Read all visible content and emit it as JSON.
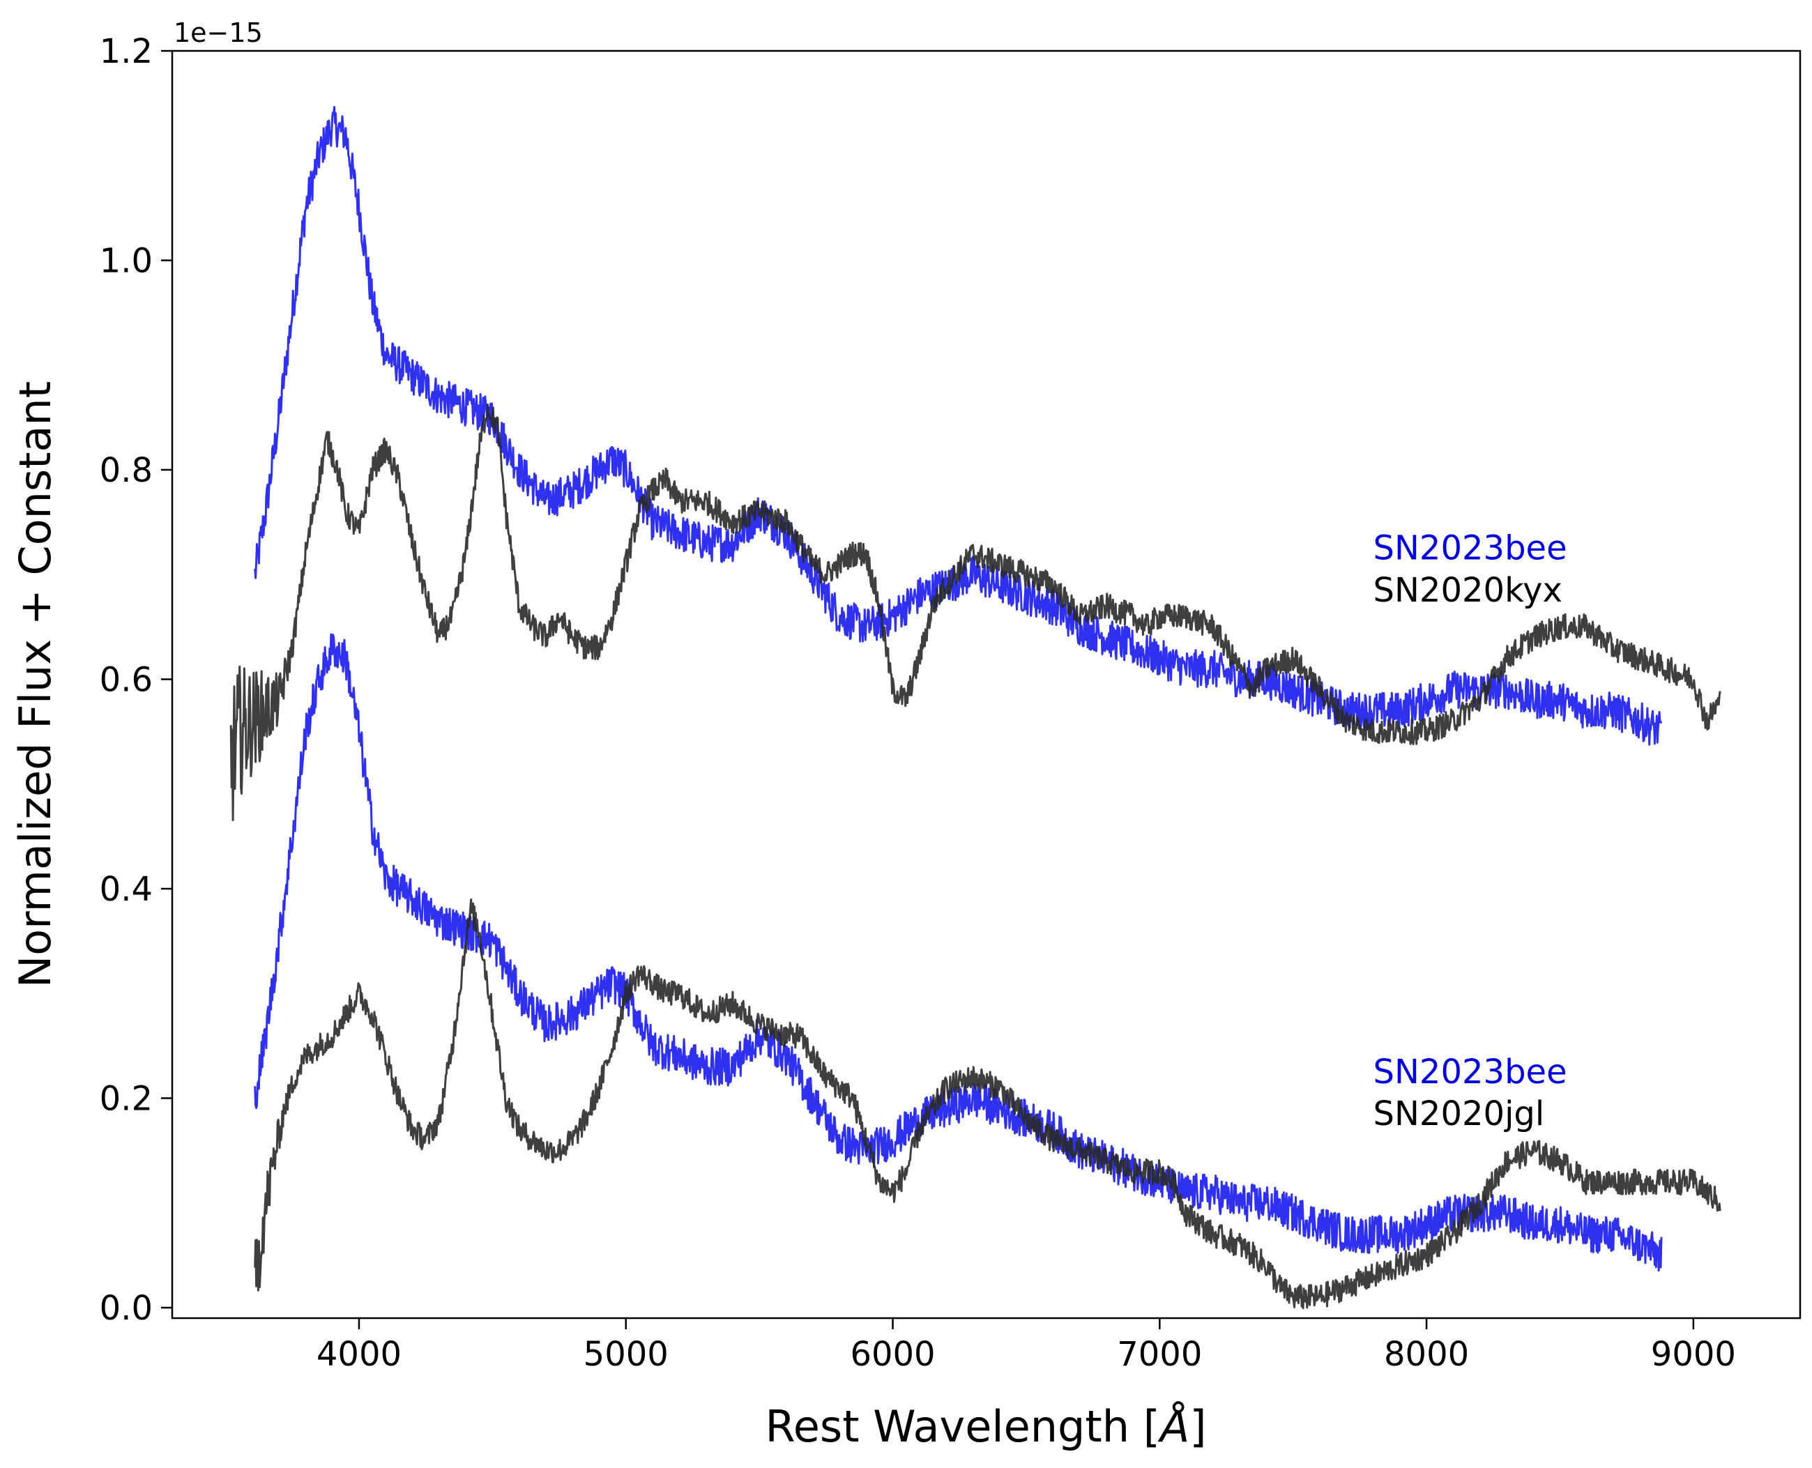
{
  "chart_data": {
    "type": "line",
    "xlabel": "Rest Wavelength [",
    "xlabel_unit": "Å",
    "xlabel_close": "]",
    "ylabel": "Normalized Flux + Constant",
    "y_offset_text": "1e−15",
    "xlim": [
      3300,
      9400
    ],
    "ylim": [
      -0.01,
      1.2
    ],
    "x_ticks": [
      4000,
      5000,
      6000,
      7000,
      8000,
      9000
    ],
    "x_tick_labels": [
      "4000",
      "5000",
      "6000",
      "7000",
      "8000",
      "9000"
    ],
    "y_ticks": [
      0.0,
      0.2,
      0.4,
      0.6,
      0.8,
      1.0,
      1.2
    ],
    "y_tick_labels": [
      "0.0",
      "0.2",
      "0.4",
      "0.6",
      "0.8",
      "1.0",
      "1.2"
    ],
    "grid": false,
    "colors": {
      "sn2023bee": "#1a1aee",
      "comparison": "#2a2a2a",
      "label_blue": "#0000dd",
      "label_black": "#000000"
    },
    "annotations": [
      {
        "text": "SN2023bee",
        "color": "#0000dd",
        "x": 7800,
        "y": 0.725
      },
      {
        "text": "SN2020kyx",
        "color": "#000000",
        "x": 7800,
        "y": 0.685
      },
      {
        "text": "SN2023bee",
        "color": "#0000dd",
        "x": 7800,
        "y": 0.225
      },
      {
        "text": "SN2020jgl",
        "color": "#000000",
        "x": 7800,
        "y": 0.185
      }
    ],
    "series": [
      {
        "key": "sn2023bee-top",
        "color": "#1a1aee",
        "noise": 0.018,
        "x": [
          3610,
          3650,
          3700,
          3750,
          3800,
          3850,
          3900,
          3950,
          4000,
          4050,
          4100,
          4150,
          4200,
          4300,
          4400,
          4500,
          4600,
          4700,
          4800,
          4900,
          4950,
          5000,
          5100,
          5200,
          5300,
          5400,
          5500,
          5550,
          5600,
          5700,
          5800,
          5900,
          6000,
          6100,
          6200,
          6300,
          6400,
          6500,
          6600,
          6700,
          6800,
          6900,
          7000,
          7100,
          7200,
          7300,
          7400,
          7500,
          7600,
          7700,
          7800,
          7900,
          8000,
          8100,
          8200,
          8300,
          8400,
          8500,
          8600,
          8700,
          8800,
          8880
        ],
        "y": [
          0.7,
          0.76,
          0.85,
          0.95,
          1.05,
          1.1,
          1.13,
          1.12,
          1.05,
          0.96,
          0.91,
          0.9,
          0.89,
          0.87,
          0.86,
          0.85,
          0.8,
          0.77,
          0.78,
          0.8,
          0.81,
          0.8,
          0.75,
          0.74,
          0.73,
          0.73,
          0.76,
          0.75,
          0.74,
          0.7,
          0.66,
          0.65,
          0.66,
          0.68,
          0.69,
          0.7,
          0.69,
          0.68,
          0.67,
          0.65,
          0.64,
          0.63,
          0.62,
          0.61,
          0.61,
          0.6,
          0.6,
          0.59,
          0.58,
          0.57,
          0.57,
          0.57,
          0.58,
          0.59,
          0.59,
          0.59,
          0.58,
          0.58,
          0.57,
          0.57,
          0.56,
          0.55
        ]
      },
      {
        "key": "sn2020kyx",
        "color": "#2a2a2a",
        "noise": 0.012,
        "x": [
          3520,
          3550,
          3600,
          3650,
          3700,
          3750,
          3800,
          3850,
          3880,
          3920,
          3950,
          4000,
          4050,
          4100,
          4150,
          4200,
          4250,
          4300,
          4350,
          4400,
          4450,
          4480,
          4520,
          4550,
          4600,
          4650,
          4700,
          4750,
          4800,
          4850,
          4900,
          4950,
          5000,
          5050,
          5100,
          5150,
          5200,
          5300,
          5400,
          5500,
          5600,
          5700,
          5750,
          5800,
          5850,
          5900,
          5950,
          6000,
          6050,
          6100,
          6150,
          6200,
          6300,
          6400,
          6500,
          6600,
          6700,
          6800,
          6900,
          6950,
          7000,
          7100,
          7200,
          7300,
          7350,
          7400,
          7500,
          7600,
          7700,
          7800,
          7900,
          8000,
          8100,
          8200,
          8300,
          8400,
          8500,
          8600,
          8700,
          8800,
          8900,
          9000,
          9050,
          9100
        ],
        "y": [
          0.52,
          0.55,
          0.56,
          0.57,
          0.58,
          0.63,
          0.72,
          0.79,
          0.83,
          0.8,
          0.76,
          0.74,
          0.8,
          0.82,
          0.79,
          0.73,
          0.68,
          0.64,
          0.66,
          0.72,
          0.82,
          0.86,
          0.84,
          0.76,
          0.67,
          0.65,
          0.64,
          0.66,
          0.64,
          0.63,
          0.63,
          0.66,
          0.71,
          0.76,
          0.78,
          0.79,
          0.77,
          0.77,
          0.75,
          0.76,
          0.75,
          0.71,
          0.7,
          0.71,
          0.72,
          0.72,
          0.67,
          0.59,
          0.58,
          0.62,
          0.67,
          0.69,
          0.72,
          0.71,
          0.7,
          0.69,
          0.66,
          0.67,
          0.66,
          0.65,
          0.66,
          0.66,
          0.65,
          0.61,
          0.59,
          0.61,
          0.62,
          0.59,
          0.56,
          0.55,
          0.55,
          0.55,
          0.56,
          0.58,
          0.62,
          0.64,
          0.65,
          0.65,
          0.63,
          0.62,
          0.61,
          0.6,
          0.56,
          0.58
        ]
      },
      {
        "key": "sn2023bee-bottom",
        "color": "#1a1aee",
        "noise": 0.018,
        "x": [
          3610,
          3650,
          3700,
          3750,
          3800,
          3850,
          3900,
          3950,
          4000,
          4050,
          4100,
          4150,
          4200,
          4300,
          4400,
          4500,
          4600,
          4700,
          4800,
          4900,
          4950,
          5000,
          5100,
          5200,
          5300,
          5400,
          5500,
          5550,
          5600,
          5700,
          5800,
          5900,
          6000,
          6100,
          6200,
          6300,
          6400,
          6500,
          6600,
          6700,
          6800,
          6900,
          7000,
          7100,
          7200,
          7300,
          7400,
          7500,
          7600,
          7700,
          7800,
          7900,
          8000,
          8100,
          8200,
          8300,
          8400,
          8500,
          8600,
          8700,
          8800,
          8880
        ],
        "y": [
          0.2,
          0.26,
          0.35,
          0.45,
          0.55,
          0.6,
          0.63,
          0.62,
          0.55,
          0.46,
          0.41,
          0.4,
          0.39,
          0.37,
          0.36,
          0.35,
          0.3,
          0.27,
          0.28,
          0.3,
          0.31,
          0.3,
          0.25,
          0.24,
          0.23,
          0.23,
          0.26,
          0.25,
          0.24,
          0.2,
          0.16,
          0.15,
          0.16,
          0.18,
          0.19,
          0.2,
          0.19,
          0.18,
          0.17,
          0.15,
          0.14,
          0.13,
          0.12,
          0.11,
          0.11,
          0.1,
          0.1,
          0.09,
          0.08,
          0.07,
          0.07,
          0.07,
          0.08,
          0.09,
          0.09,
          0.09,
          0.08,
          0.08,
          0.07,
          0.07,
          0.06,
          0.05
        ]
      },
      {
        "key": "sn2020jgl",
        "color": "#2a2a2a",
        "noise": 0.012,
        "x": [
          3610,
          3640,
          3680,
          3720,
          3760,
          3800,
          3850,
          3900,
          3950,
          4000,
          4050,
          4100,
          4150,
          4200,
          4250,
          4300,
          4350,
          4400,
          4420,
          4450,
          4500,
          4550,
          4600,
          4650,
          4700,
          4750,
          4800,
          4850,
          4900,
          4950,
          5000,
          5050,
          5100,
          5150,
          5200,
          5250,
          5300,
          5400,
          5500,
          5600,
          5650,
          5700,
          5750,
          5800,
          5850,
          5900,
          5950,
          6000,
          6050,
          6100,
          6200,
          6300,
          6400,
          6500,
          6600,
          6700,
          6800,
          6900,
          7000,
          7050,
          7100,
          7200,
          7300,
          7400,
          7450,
          7500,
          7550,
          7600,
          7700,
          7800,
          7900,
          8000,
          8100,
          8200,
          8300,
          8400,
          8500,
          8600,
          8700,
          8800,
          8900,
          9000,
          9050,
          9100
        ],
        "y": [
          0.02,
          0.08,
          0.14,
          0.19,
          0.22,
          0.24,
          0.25,
          0.26,
          0.28,
          0.3,
          0.28,
          0.24,
          0.2,
          0.17,
          0.16,
          0.18,
          0.25,
          0.35,
          0.38,
          0.36,
          0.28,
          0.2,
          0.17,
          0.16,
          0.15,
          0.15,
          0.16,
          0.18,
          0.21,
          0.25,
          0.3,
          0.32,
          0.31,
          0.3,
          0.3,
          0.29,
          0.28,
          0.29,
          0.27,
          0.26,
          0.26,
          0.24,
          0.22,
          0.21,
          0.2,
          0.16,
          0.12,
          0.11,
          0.13,
          0.17,
          0.21,
          0.22,
          0.21,
          0.18,
          0.16,
          0.15,
          0.14,
          0.13,
          0.13,
          0.12,
          0.09,
          0.07,
          0.06,
          0.04,
          0.02,
          0.01,
          0.01,
          0.01,
          0.02,
          0.03,
          0.04,
          0.05,
          0.07,
          0.1,
          0.14,
          0.15,
          0.14,
          0.12,
          0.12,
          0.12,
          0.12,
          0.12,
          0.11,
          0.1
        ]
      }
    ]
  }
}
